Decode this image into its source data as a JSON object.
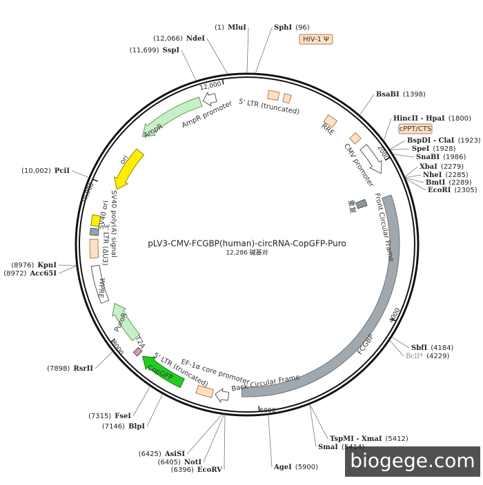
{
  "header": {
    "title": "pLV3-CMV-FCGBP(human)-circRNA-CopGFP-Puro",
    "size": "12,286 碱基对"
  },
  "sites": [
    {
      "name": "MluI",
      "pos": "(1)"
    },
    {
      "name": "SphI",
      "pos": "(96)"
    },
    {
      "name": "NdeI",
      "pos": "(12,066)"
    },
    {
      "name": "SspI",
      "pos": "(11,699)"
    },
    {
      "name": "BsaBI",
      "pos": "(1398)"
    },
    {
      "name": "HincII - HpaI",
      "pos": "(1800)"
    },
    {
      "name": "BspDI - ClaI",
      "pos": "(1923)"
    },
    {
      "name": "SpeI",
      "pos": "(1928)"
    },
    {
      "name": "SnaBI",
      "pos": "(1986)"
    },
    {
      "name": "XbaI",
      "pos": "(2279)"
    },
    {
      "name": "NheI",
      "pos": "(2285)"
    },
    {
      "name": "BmtI",
      "pos": "(2289)"
    },
    {
      "name": "EcoRI",
      "pos": "(2305)"
    },
    {
      "name": "SbfI",
      "pos": "(4184)"
    },
    {
      "name": "BclI*",
      "pos": "(4229)"
    },
    {
      "name": "TspMI - XmaI",
      "pos": "(5412)"
    },
    {
      "name": "SmaI",
      "pos": "(5414)"
    },
    {
      "name": "AgeI",
      "pos": "(5900)"
    },
    {
      "name": "AsiSI",
      "pos": "(6425)"
    },
    {
      "name": "NotI",
      "pos": "(6405)"
    },
    {
      "name": "EcoRV",
      "pos": "(6396)"
    },
    {
      "name": "FseI",
      "pos": "(7315)"
    },
    {
      "name": "BlpI",
      "pos": "(7146)"
    },
    {
      "name": "RsrII",
      "pos": "(7898)"
    },
    {
      "name": "KpnI",
      "pos": "(8976)"
    },
    {
      "name": "Acc65I",
      "pos": "(8972)"
    },
    {
      "name": "PciI",
      "pos": "(10,002)"
    }
  ],
  "features": [
    "5' LTR (truncated)",
    "HIV-1 Ψ",
    "RRE",
    "cPPT/CTS",
    "CMV promoter",
    "重复",
    "Front Circular Frame",
    "FCGBP",
    "Back Circular Frame",
    "EF-1α core promoter",
    "5' LTR (truncated)",
    "CopGFP",
    "T2A",
    "PuroR",
    "WPRE",
    "3' LTR (ΔU3)",
    "SV40 poly(A) signal",
    "SV40 ori",
    "ori",
    "AmpR",
    "AmpR promoter"
  ],
  "ticks": [
    "2000",
    "4000",
    "6000",
    "8000",
    "10,000",
    "12,000"
  ],
  "watermark": "biogege.com"
}
